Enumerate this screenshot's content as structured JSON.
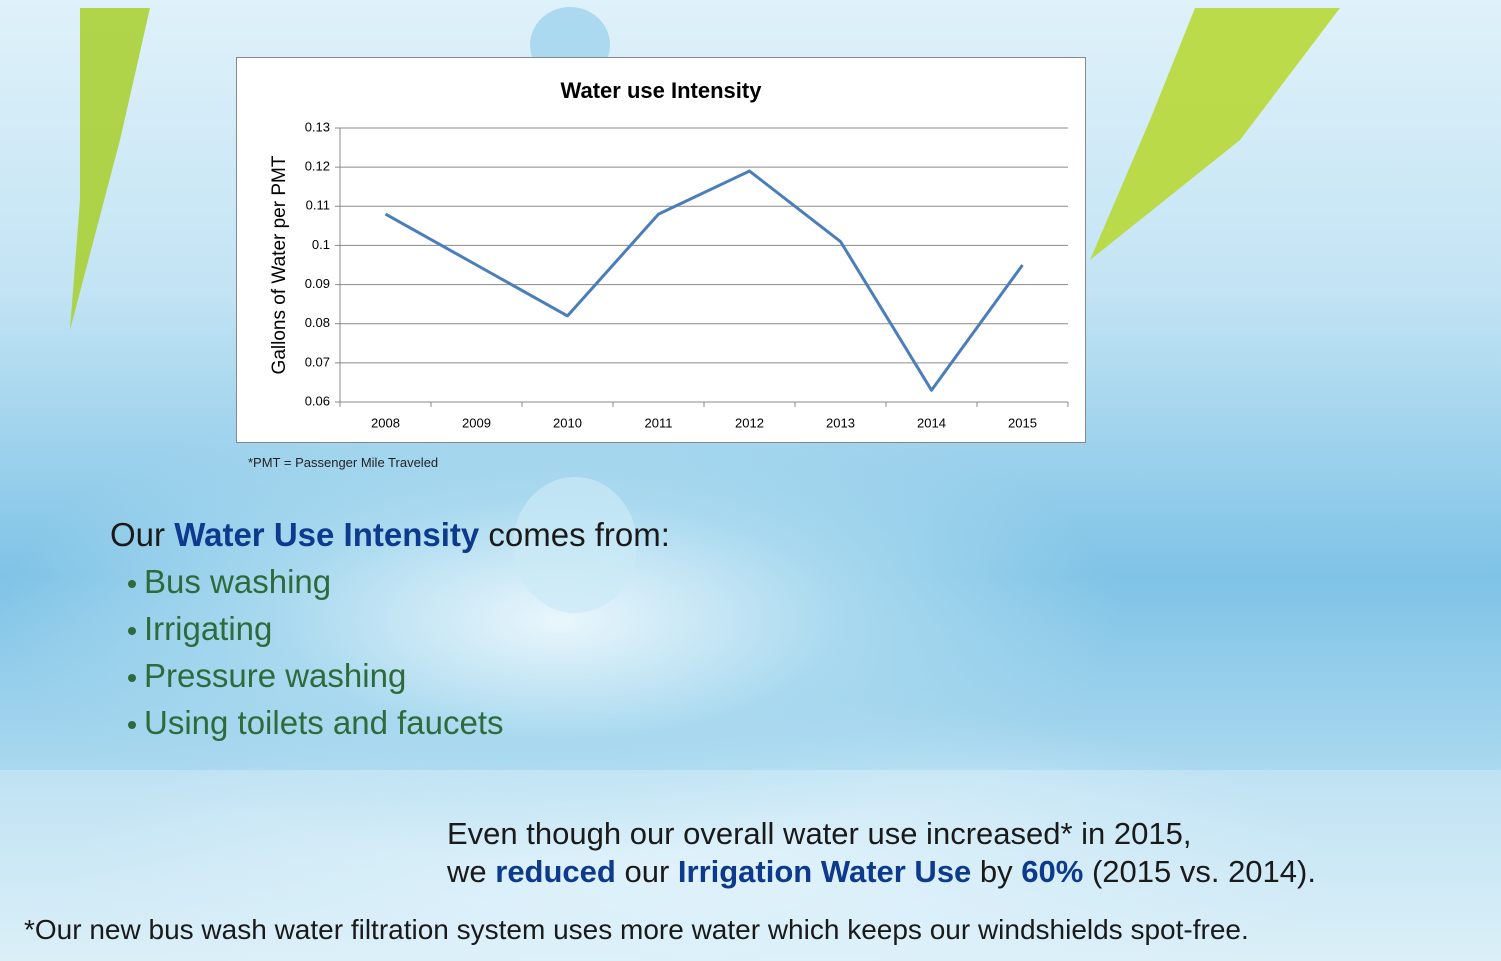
{
  "chart_data": {
    "type": "line",
    "title": "Water use Intensity",
    "ylabel": "Gallons of Water per PMT",
    "note": "*PMT = Passenger Mile Traveled",
    "categories": [
      "2008",
      "2009",
      "2010",
      "2011",
      "2012",
      "2013",
      "2014",
      "2015"
    ],
    "series": [
      {
        "name": "Water use Intensity",
        "color": "#4a7ebb",
        "values": [
          0.108,
          0.095,
          0.082,
          0.108,
          0.119,
          0.101,
          0.063,
          0.095
        ]
      }
    ],
    "ylim": [
      0.06,
      0.13
    ],
    "yticks": [
      0.06,
      0.07,
      0.08,
      0.09,
      0.1,
      0.11,
      0.12,
      0.13
    ],
    "grid": true,
    "legend": false
  },
  "intro": [
    "Our ",
    "Water Use Intensity",
    " comes from:"
  ],
  "bullets": [
    "Bus washing",
    "Irrigating",
    "Pressure washing",
    "Using toilets and faucets"
  ],
  "statement": {
    "line1": "Even though our overall water use increased* in 2015,",
    "line2": [
      "we ",
      "reduced",
      " our ",
      "Irrigation Water Use",
      " by ",
      "60%",
      " (2015 vs. 2014)."
    ]
  },
  "footnote": "*Our new bus wash water filtration system uses more water which keeps our windshields spot-free."
}
